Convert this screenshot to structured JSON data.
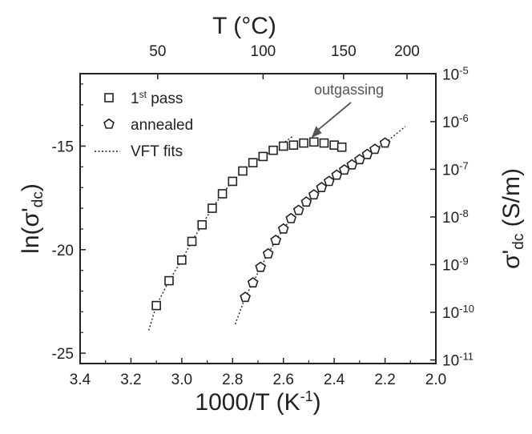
{
  "chart_data": {
    "type": "scatter",
    "xlabel_bottom": "1000/T (K",
    "xlabel_bottom_sup": "-1",
    "xlabel_bottom_end": ")",
    "xlabel_top": "T (°C)",
    "ylabel_left": "ln(σ'",
    "ylabel_left_sub": "dc",
    "ylabel_left_end": ")",
    "ylabel_right": "σ'",
    "ylabel_right_sub": "dc",
    "ylabel_right_end": " (S/m)",
    "xlim": [
      3.4,
      2.0
    ],
    "ylim": [
      -25.5,
      -11.5
    ],
    "x_ticks": [
      "3.4",
      "3.2",
      "3.0",
      "2.8",
      "2.6",
      "2.4",
      "2.2",
      "2.0"
    ],
    "x_tick_values": [
      3.4,
      3.2,
      3.0,
      2.8,
      2.6,
      2.4,
      2.2,
      2.0
    ],
    "y_ticks": [
      "-15",
      "-20",
      "-25"
    ],
    "y_tick_values": [
      -15,
      -20,
      -25
    ],
    "top_ticks": [
      "50",
      "100",
      "150",
      "200"
    ],
    "top_tick_celsius": [
      50,
      100,
      150,
      200
    ],
    "right_ticks": [
      {
        "base": "10",
        "exp": "-5",
        "value": -5
      },
      {
        "base": "10",
        "exp": "-6",
        "value": -6
      },
      {
        "base": "10",
        "exp": "-7",
        "value": -7
      },
      {
        "base": "10",
        "exp": "-8",
        "value": -8
      },
      {
        "base": "10",
        "exp": "-9",
        "value": -9
      },
      {
        "base": "10",
        "exp": "-10",
        "value": -10
      },
      {
        "base": "10",
        "exp": "-11",
        "value": -11
      }
    ],
    "legend": {
      "placement": "top-left",
      "entries": [
        {
          "label": "1",
          "sup": "st",
          "label_end": " pass",
          "marker": "square"
        },
        {
          "label": "annealed",
          "marker": "pentagon"
        },
        {
          "label": "VFT fits",
          "marker": "dotted-line"
        }
      ]
    },
    "annotation": {
      "text": "outgassing",
      "x": 2.49,
      "y": -14.6
    },
    "series": [
      {
        "name": "1st pass",
        "marker": "square",
        "x": [
          3.1,
          3.05,
          3.0,
          2.96,
          2.92,
          2.88,
          2.84,
          2.8,
          2.76,
          2.72,
          2.68,
          2.64,
          2.6,
          2.56,
          2.52,
          2.48,
          2.44,
          2.4,
          2.37
        ],
        "y": [
          -22.7,
          -21.5,
          -20.5,
          -19.6,
          -18.8,
          -18.0,
          -17.3,
          -16.7,
          -16.2,
          -15.8,
          -15.5,
          -15.2,
          -15.0,
          -14.95,
          -14.85,
          -14.8,
          -14.85,
          -14.95,
          -15.05
        ]
      },
      {
        "name": "annealed",
        "marker": "pentagon",
        "x": [
          2.75,
          2.72,
          2.69,
          2.66,
          2.63,
          2.6,
          2.57,
          2.54,
          2.51,
          2.48,
          2.45,
          2.42,
          2.39,
          2.36,
          2.33,
          2.3,
          2.27,
          2.24,
          2.2
        ],
        "y": [
          -22.3,
          -21.6,
          -20.85,
          -20.2,
          -19.55,
          -19.0,
          -18.5,
          -18.1,
          -17.7,
          -17.35,
          -17.0,
          -16.7,
          -16.4,
          -16.15,
          -15.9,
          -15.65,
          -15.4,
          -15.15,
          -14.85
        ]
      },
      {
        "name": "VFT fits",
        "style": "dotted-line",
        "segments": [
          {
            "x": [
              3.13,
              3.1,
              3.05,
              3.0,
              2.96,
              2.92,
              2.88,
              2.84,
              2.8,
              2.76,
              2.72,
              2.68,
              2.64,
              2.6,
              2.56
            ],
            "y": [
              -23.9,
              -22.7,
              -21.5,
              -20.5,
              -19.6,
              -18.8,
              -18.0,
              -17.3,
              -16.7,
              -16.2,
              -15.8,
              -15.5,
              -15.2,
              -14.85,
              -14.5
            ]
          },
          {
            "x": [
              2.79,
              2.75,
              2.72,
              2.69,
              2.66,
              2.63,
              2.6,
              2.57,
              2.54,
              2.51,
              2.48,
              2.45,
              2.42,
              2.39,
              2.36,
              2.33,
              2.3,
              2.27,
              2.24,
              2.2,
              2.16,
              2.12
            ],
            "y": [
              -23.6,
              -22.3,
              -21.6,
              -20.85,
              -20.2,
              -19.55,
              -19.0,
              -18.5,
              -18.1,
              -17.7,
              -17.35,
              -17.0,
              -16.7,
              -16.4,
              -16.15,
              -15.9,
              -15.65,
              -15.4,
              -15.15,
              -14.85,
              -14.45,
              -14.05
            ]
          }
        ]
      }
    ]
  }
}
